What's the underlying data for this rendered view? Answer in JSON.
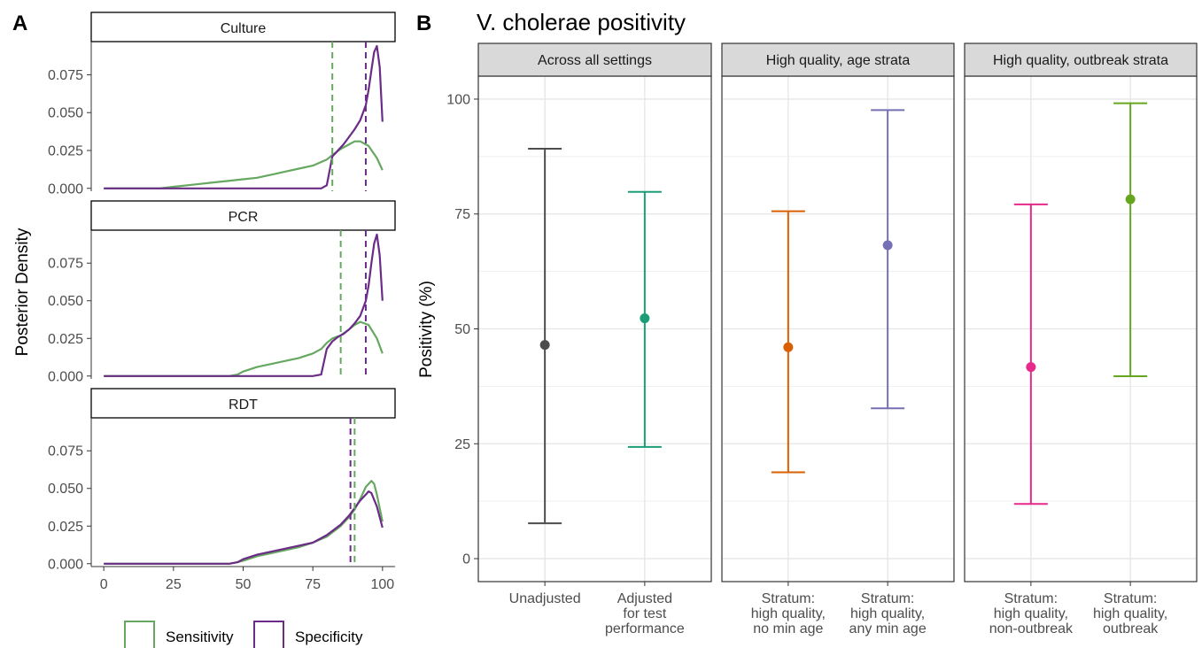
{
  "panels": {
    "a": {
      "letter": "A"
    },
    "b": {
      "letter": "B",
      "title": "V. cholerae positivity"
    }
  },
  "legend": {
    "items": [
      {
        "label": "Sensitivity",
        "color": "#66a860"
      },
      {
        "label": "Specificity",
        "color": "#6a2c86"
      }
    ]
  },
  "chart_data": [
    {
      "type": "line",
      "panel": "A",
      "ylabel": "Posterior Density",
      "xlabel": "",
      "xlim": [
        0,
        100
      ],
      "ylim": [
        0,
        0.095
      ],
      "x_ticks": [
        "0",
        "25",
        "50",
        "75",
        "100"
      ],
      "y_ticks": [
        "0.000",
        "0.025",
        "0.050",
        "0.075"
      ],
      "grid": false,
      "legend_position": "bottom",
      "facets": [
        {
          "label": "Culture",
          "vlines": {
            "Sensitivity": 82,
            "Specificity": 94
          },
          "series": [
            {
              "name": "Sensitivity",
              "x": [
                0,
                20,
                25,
                30,
                40,
                50,
                55,
                60,
                65,
                70,
                75,
                80,
                82,
                85,
                88,
                90,
                92,
                95,
                98,
                100
              ],
              "y": [
                0,
                0,
                0.001,
                0.002,
                0.004,
                0.006,
                0.007,
                0.009,
                0.011,
                0.013,
                0.015,
                0.019,
                0.022,
                0.026,
                0.029,
                0.031,
                0.031,
                0.028,
                0.02,
                0.012
              ]
            },
            {
              "name": "Specificity",
              "x": [
                0,
                70,
                78,
                80,
                82,
                84,
                86,
                88,
                90,
                92,
                94,
                95,
                96,
                97,
                98,
                99,
                100
              ],
              "y": [
                0,
                0,
                0,
                0.002,
                0.021,
                0.025,
                0.029,
                0.034,
                0.039,
                0.045,
                0.055,
                0.065,
                0.078,
                0.09,
                0.094,
                0.08,
                0.044
              ]
            }
          ]
        },
        {
          "label": "PCR",
          "vlines": {
            "Sensitivity": 85,
            "Specificity": 94
          },
          "series": [
            {
              "name": "Sensitivity",
              "x": [
                0,
                40,
                45,
                48,
                50,
                55,
                60,
                65,
                70,
                75,
                78,
                80,
                82,
                85,
                88,
                90,
                92,
                95,
                98,
                100
              ],
              "y": [
                0,
                0,
                0,
                0.001,
                0.003,
                0.006,
                0.008,
                0.01,
                0.012,
                0.015,
                0.018,
                0.022,
                0.025,
                0.027,
                0.031,
                0.034,
                0.036,
                0.034,
                0.025,
                0.015
              ]
            },
            {
              "name": "Specificity",
              "x": [
                0,
                75,
                78,
                80,
                82,
                84,
                86,
                88,
                90,
                92,
                94,
                95,
                96,
                97,
                98,
                99,
                100
              ],
              "y": [
                0,
                0,
                0.001,
                0.018,
                0.023,
                0.026,
                0.028,
                0.031,
                0.035,
                0.04,
                0.05,
                0.06,
                0.075,
                0.088,
                0.094,
                0.08,
                0.05
              ]
            }
          ]
        },
        {
          "label": "RDT",
          "vlines": {
            "Sensitivity": 90,
            "Specificity": 88.5
          },
          "series": [
            {
              "name": "Sensitivity",
              "x": [
                0,
                40,
                45,
                48,
                50,
                55,
                60,
                65,
                70,
                75,
                80,
                85,
                88,
                90,
                92,
                94,
                96,
                97,
                98,
                100
              ],
              "y": [
                0,
                0,
                0,
                0.001,
                0.002,
                0.005,
                0.007,
                0.009,
                0.011,
                0.014,
                0.018,
                0.025,
                0.031,
                0.036,
                0.043,
                0.051,
                0.055,
                0.053,
                0.046,
                0.028
              ]
            },
            {
              "name": "Specificity",
              "x": [
                0,
                40,
                45,
                48,
                50,
                55,
                60,
                65,
                70,
                75,
                80,
                85,
                88,
                90,
                92,
                94,
                95,
                96,
                98,
                100
              ],
              "y": [
                0,
                0,
                0,
                0.001,
                0.003,
                0.006,
                0.008,
                0.01,
                0.012,
                0.014,
                0.019,
                0.026,
                0.032,
                0.037,
                0.042,
                0.046,
                0.048,
                0.047,
                0.038,
                0.024
              ]
            }
          ]
        }
      ]
    },
    {
      "type": "scatter",
      "panel": "B",
      "title": "V. cholerae positivity",
      "ylabel": "Positivity (%)",
      "xlabel": "",
      "ylim": [
        0,
        100
      ],
      "y_ticks": [
        "0",
        "25",
        "50",
        "75",
        "100"
      ],
      "grid": true,
      "error_bars": true,
      "facets": [
        {
          "label": "Across all settings",
          "points": [
            {
              "category": "Unadjusted",
              "estimate": 46.5,
              "lower": 7.7,
              "upper": 89.2,
              "color": "#4d4d4d"
            },
            {
              "category": "Adjusted\nfor test\nperformance",
              "estimate": 52.3,
              "lower": 24.3,
              "upper": 79.8,
              "color": "#1b9e77"
            }
          ]
        },
        {
          "label": "High quality, age strata",
          "points": [
            {
              "category": "Stratum:\nhigh quality,\nno min age",
              "estimate": 46,
              "lower": 18.8,
              "upper": 75.6,
              "color": "#d95f02"
            },
            {
              "category": "Stratum:\nhigh quality,\nany min age",
              "estimate": 68.2,
              "lower": 32.7,
              "upper": 97.6,
              "color": "#7570b3"
            }
          ]
        },
        {
          "label": "High quality, outbreak strata",
          "points": [
            {
              "category": "Stratum:\nhigh quality,\nnon-outbreak",
              "estimate": 41.7,
              "lower": 11.9,
              "upper": 77.1,
              "color": "#e7298a"
            },
            {
              "category": "Stratum:\nhigh quality,\noutbreak",
              "estimate": 78.2,
              "lower": 39.7,
              "upper": 99.1,
              "color": "#66a61e"
            }
          ]
        }
      ]
    }
  ]
}
